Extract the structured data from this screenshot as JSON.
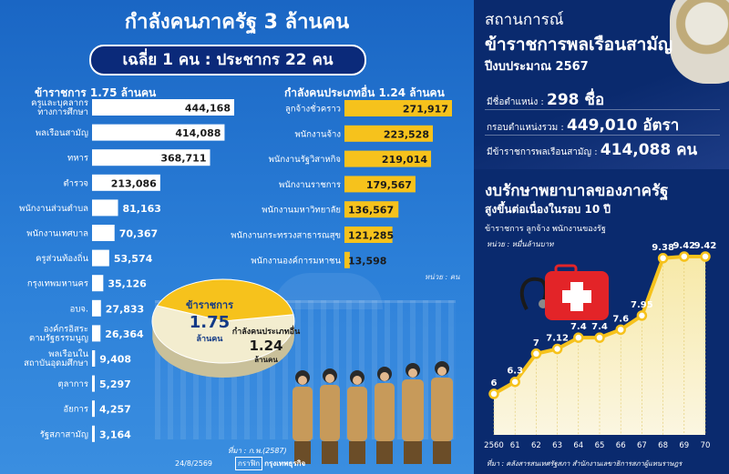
{
  "left": {
    "title": "กำลังคนภาครัฐ 3 ล้านคน",
    "subtitle": "เฉลี่ย 1 คน : ประชากร 22 คน",
    "gov_header": "ข้าราชการ 1.75 ล้านคน",
    "other_header": "กำลังคนประเภทอื่น 1.24 ล้านคน",
    "unit_note": "หน่วย : คน",
    "source": "ที่มา : ก.พ.(2587)",
    "date": "24/8/2569",
    "credit_key": "กราฟิก",
    "credit_value": "กรุงเทพธุรกิจ",
    "pie": {
      "gov_label": "ข้าราชการ",
      "gov_value": "1.75",
      "gov_unit": "ล้านคน",
      "other_label": "กำลังคนประเภทอื่น",
      "other_value": "1.24",
      "other_unit": "ล้านคน"
    }
  },
  "right": {
    "title1": "สถานการณ์",
    "title2": "ข้าราชการพลเรือนสามัญ",
    "title3": "ปีงบประมาณ 2567",
    "stats": [
      {
        "label": "มีชื่อตำแหน่ง :",
        "value": "298 ชื่อ"
      },
      {
        "label": "กรอบตำแหน่งรวม :",
        "value": "449,010 อัตรา"
      },
      {
        "label": "มีข้าราชการพลเรือนสามัญ :",
        "value": "414,088 คน"
      }
    ],
    "title4": "งบรักษาพยาบาลของภาครัฐ",
    "title5": "สูงขึ้นต่อเนื่องในรอบ 10 ปี",
    "sub": "ข้าราชการ ลูกจ้าง พนักงานของรัฐ",
    "unit": "หน่วย : หมื่นล้านบาท",
    "source": "ที่มา : คลังสารสนเทศรัฐสภา สำนักงานเลขาธิการสภาผู้แทนราษฎร"
  },
  "chart_data": [
    {
      "type": "bar",
      "title": "ข้าราชการ 1.75 ล้านคน",
      "categories": [
        "ครูและบุคลากรทางการศึกษา",
        "พลเรือนสามัญ",
        "ทหาร",
        "ตำรวจ",
        "พนักงานส่วนตำบล",
        "พนักงานเทศบาล",
        "ครูส่วนท้องถิ่น",
        "กรุงเทพมหานคร",
        "อบจ.",
        "องค์กรอิสระตามรัฐธรรมนูญ",
        "พลเรือนในสถาบันอุดมศึกษา",
        "ตุลาการ",
        "อัยการ",
        "รัฐสภาสามัญ"
      ],
      "values": [
        444168,
        414088,
        368711,
        213086,
        81163,
        70367,
        53574,
        35126,
        27833,
        26364,
        9408,
        5297,
        4257,
        3164
      ],
      "labels": [
        "444,168",
        "414,088",
        "368,711",
        "213,086",
        "81,163",
        "70,367",
        "53,574",
        "35,126",
        "27,833",
        "26,364",
        "9,408",
        "5,297",
        "4,257",
        "3,164"
      ],
      "color": "#ffffff"
    },
    {
      "type": "bar",
      "title": "กำลังคนประเภทอื่น 1.24 ล้านคน",
      "categories": [
        "ลูกจ้างชั่วคราว",
        "พนักงานจ้าง",
        "พนักงานรัฐวิสาหกิจ",
        "พนักงานราชการ",
        "พนักงานมหาวิทยาลัย",
        "พนักงานกระทรวงสาธารณสุข",
        "พนักงานองค์การมหาชน"
      ],
      "values": [
        271917,
        223528,
        219014,
        179567,
        136567,
        121285,
        13598
      ],
      "labels": [
        "271,917",
        "223,528",
        "219,014",
        "179,567",
        "136,567",
        "121,285",
        "13,598"
      ],
      "color": "#f6c21c"
    },
    {
      "type": "pie",
      "categories": [
        "ข้าราชการ",
        "กำลังคนประเภทอื่น"
      ],
      "values": [
        1.75,
        1.24
      ],
      "colors": [
        "#f3edcf",
        "#f6c21c"
      ]
    },
    {
      "type": "area",
      "title": "งบรักษาพยาบาลของภาครัฐ",
      "x": [
        "2560",
        "61",
        "62",
        "63",
        "64",
        "65",
        "66",
        "67",
        "68",
        "69",
        "70"
      ],
      "values": [
        6,
        6.3,
        7,
        7.12,
        7.4,
        7.4,
        7.6,
        7.95,
        9.38,
        9.42,
        9.42
      ],
      "labels": [
        "6",
        "6.3",
        "7",
        "7.12",
        "7.4",
        "7.4",
        "7.6",
        "7.95",
        "9.38",
        "9.42",
        "9.42"
      ],
      "color": "#f6c21c"
    }
  ]
}
